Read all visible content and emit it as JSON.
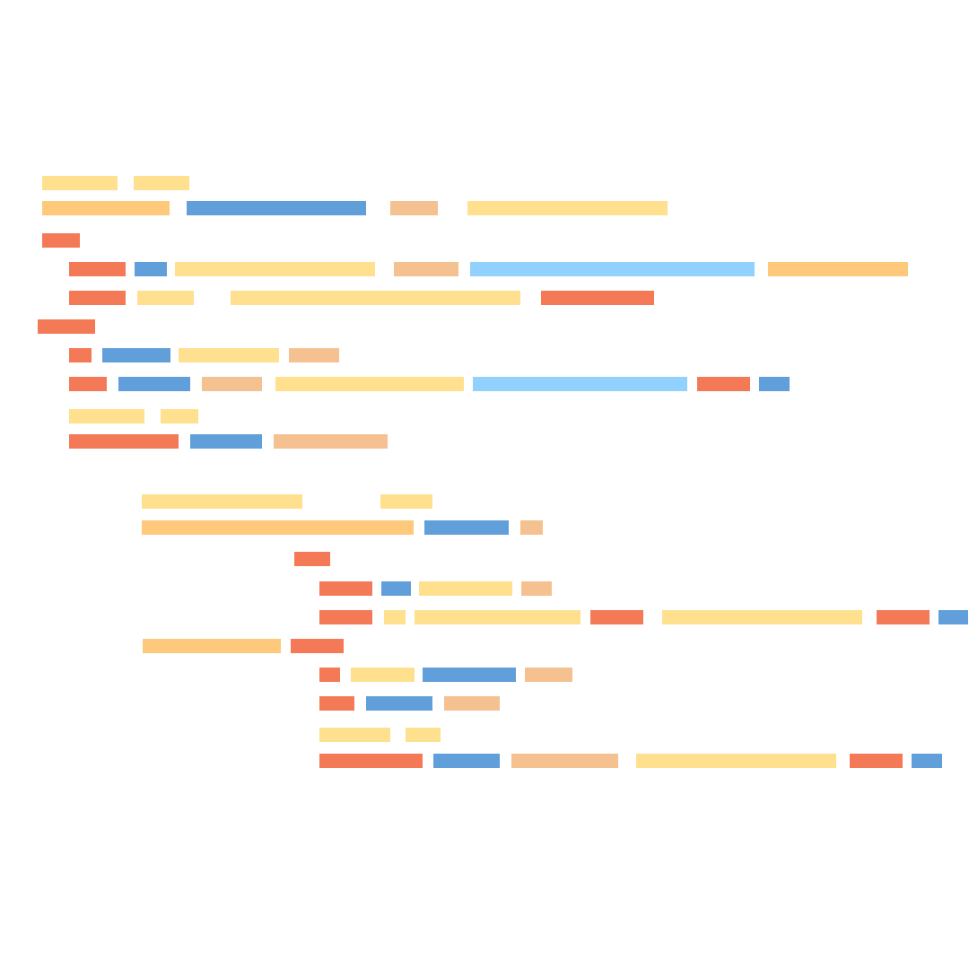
{
  "palette": {
    "red": "#f47a57",
    "blue": "#619fda",
    "yellow": "#fee08f",
    "peach": "#f6c191",
    "orange": "#fec97a",
    "lightblue": "#92d1fd"
  },
  "blocks": [
    {
      "segments": [
        "yellow",
        "yellow"
      ]
    },
    {
      "segments": [
        "orange",
        "blue",
        "peach",
        "yellow"
      ]
    },
    {
      "segments": [
        "red"
      ]
    },
    {
      "segments": [
        "red",
        "blue",
        "yellow",
        "peach",
        "lightblue",
        "orange"
      ]
    },
    {
      "segments": [
        "red",
        "yellow",
        "yellow",
        "red"
      ]
    },
    {
      "segments": [
        "red"
      ]
    },
    {
      "segments": [
        "red",
        "blue",
        "yellow",
        "peach"
      ]
    },
    {
      "segments": [
        "red",
        "blue",
        "peach",
        "yellow",
        "lightblue",
        "red",
        "blue"
      ]
    },
    {
      "segments": [
        "yellow",
        "yellow"
      ]
    },
    {
      "segments": [
        "red",
        "blue",
        "peach"
      ]
    },
    {
      "segments": [
        "yellow",
        "yellow"
      ]
    },
    {
      "segments": [
        "orange",
        "blue",
        "peach"
      ]
    },
    {
      "segments": [
        "red"
      ]
    },
    {
      "segments": [
        "red",
        "blue",
        "yellow",
        "peach"
      ]
    },
    {
      "segments": [
        "red",
        "yellow",
        "yellow",
        "red",
        "yellow",
        "red",
        "blue"
      ]
    },
    {
      "segments": [
        "orange",
        "red"
      ]
    },
    {
      "segments": [
        "red",
        "yellow",
        "blue",
        "peach"
      ]
    },
    {
      "segments": [
        "red",
        "blue",
        "peach"
      ]
    },
    {
      "segments": [
        "yellow",
        "yellow"
      ]
    },
    {
      "segments": [
        "red",
        "blue",
        "peach",
        "yellow",
        "red",
        "blue"
      ]
    }
  ]
}
